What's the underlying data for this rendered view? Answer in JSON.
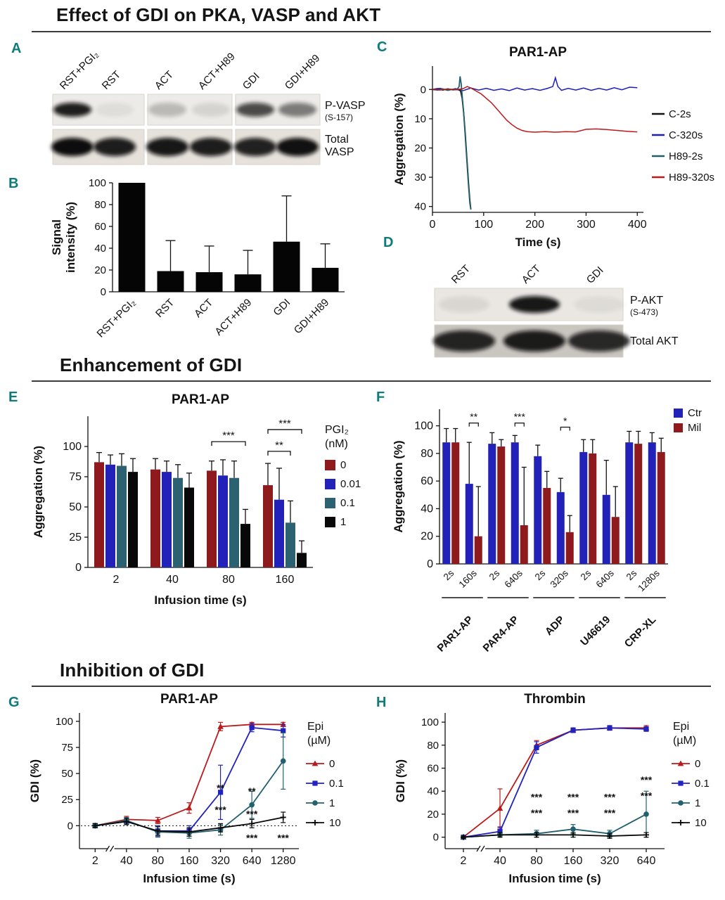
{
  "figure": {
    "sections": [
      {
        "title": "Effect of GDI on PKA, VASP and AKT"
      },
      {
        "title": "Enhancement of GDI"
      },
      {
        "title": "Inhibition of GDI"
      }
    ],
    "panel_letters": [
      "A",
      "B",
      "C",
      "D",
      "E",
      "F",
      "G",
      "H"
    ]
  },
  "blots": [
    {
      "id": "blot-a",
      "panel": "A",
      "lanes": [
        "RST+PGI₂",
        "RST",
        "ACT",
        "ACT+H89",
        "GDI",
        "GDI+H89"
      ],
      "rows": [
        {
          "label_lines": [
            "P-VASP"
          ],
          "sublabel": "(S-157)",
          "intensities": [
            0.92,
            0.06,
            0.22,
            0.1,
            0.72,
            0.5
          ]
        },
        {
          "label_lines": [
            "Total",
            "VASP"
          ],
          "sublabel": "",
          "intensities": [
            1,
            0.92,
            0.95,
            0.92,
            0.9,
            0.98
          ]
        }
      ]
    },
    {
      "id": "blot-d",
      "panel": "D",
      "lanes": [
        "RST",
        "ACT",
        "GDI"
      ],
      "rows": [
        {
          "label_lines": [
            "P-AKT"
          ],
          "sublabel": "(S-473)",
          "intensities": [
            0.07,
            0.95,
            0.05
          ]
        },
        {
          "label_lines": [
            "Total AKT"
          ],
          "sublabel": "",
          "intensities": [
            0.88,
            0.92,
            0.85
          ]
        }
      ]
    }
  ],
  "chart_data": [
    {
      "id": "chart-b",
      "panel": "B",
      "type": "bar",
      "ylabel_lines": [
        "Signal",
        "intensity (%)"
      ],
      "categories": [
        "RST+PGI₂",
        "RST",
        "ACT",
        "ACT+H89",
        "GDI",
        "GDI+H89"
      ],
      "values": [
        100,
        19,
        18,
        16,
        46,
        22
      ],
      "errors": [
        0,
        28,
        24,
        22,
        42,
        22
      ],
      "ylim": [
        0,
        100
      ],
      "yticks": [
        0,
        20,
        40,
        60,
        80,
        100
      ],
      "bar_color": "#050505"
    },
    {
      "id": "chart-c",
      "panel": "C",
      "type": "line",
      "title": "PAR1-AP",
      "xlabel": "Time (s)",
      "ylabel": "Aggregation (%)",
      "xlim": [
        0,
        412
      ],
      "xticks": [
        0,
        100,
        200,
        300,
        400
      ],
      "ylim": [
        -8,
        42
      ],
      "yticks": [
        0,
        10,
        20,
        30,
        40
      ],
      "y_inverted": true,
      "series": [
        {
          "name": "C-2s",
          "color": "#141414",
          "width": 1.8,
          "points": [
            [
              0,
              0
            ],
            [
              10,
              -0.3
            ],
            [
              20,
              0.2
            ],
            [
              30,
              -0.2
            ],
            [
              40,
              0.1
            ],
            [
              50,
              0
            ],
            [
              55,
              0.5
            ],
            [
              58,
              3
            ],
            [
              61,
              8
            ],
            [
              64,
              15
            ],
            [
              67,
              23
            ],
            [
              70,
              31
            ],
            [
              73,
              38
            ],
            [
              75,
              41
            ]
          ]
        },
        {
          "name": "C-320s",
          "color": "#1d1dbe",
          "width": 1.5,
          "points": [
            [
              0,
              0
            ],
            [
              15,
              -0.4
            ],
            [
              30,
              0.3
            ],
            [
              45,
              -0.3
            ],
            [
              60,
              0.4
            ],
            [
              75,
              -0.5
            ],
            [
              90,
              0.2
            ],
            [
              105,
              -0.4
            ],
            [
              120,
              0.3
            ],
            [
              135,
              -0.2
            ],
            [
              150,
              0.4
            ],
            [
              165,
              -0.5
            ],
            [
              180,
              0.2
            ],
            [
              195,
              -0.3
            ],
            [
              210,
              0.3
            ],
            [
              225,
              -0.4
            ],
            [
              235,
              -1
            ],
            [
              240,
              -4
            ],
            [
              245,
              -1
            ],
            [
              252,
              0.3
            ],
            [
              265,
              -0.4
            ],
            [
              280,
              0.2
            ],
            [
              295,
              -0.5
            ],
            [
              310,
              0.3
            ],
            [
              325,
              -0.4
            ],
            [
              340,
              0.2
            ],
            [
              355,
              -0.6
            ],
            [
              370,
              0.1
            ],
            [
              385,
              -0.8
            ],
            [
              400,
              -0.6
            ]
          ]
        },
        {
          "name": "H89-2s",
          "color": "#22606e",
          "width": 1.8,
          "points": [
            [
              0,
              0
            ],
            [
              10,
              0.2
            ],
            [
              20,
              -0.2
            ],
            [
              30,
              0.3
            ],
            [
              40,
              -0.1
            ],
            [
              48,
              0
            ],
            [
              52,
              -1
            ],
            [
              54,
              -4.5
            ],
            [
              56,
              -2
            ],
            [
              58,
              2
            ],
            [
              61,
              8
            ],
            [
              64,
              16
            ],
            [
              67,
              24
            ],
            [
              70,
              32
            ],
            [
              73,
              39
            ],
            [
              75,
              41
            ]
          ]
        },
        {
          "name": "H89-320s",
          "color": "#bc1a1a",
          "width": 1.5,
          "points": [
            [
              0,
              0
            ],
            [
              15,
              0.2
            ],
            [
              30,
              -0.2
            ],
            [
              45,
              0.1
            ],
            [
              60,
              -0.3
            ],
            [
              68,
              -1
            ],
            [
              75,
              -0.5
            ],
            [
              85,
              0.5
            ],
            [
              95,
              1.5
            ],
            [
              105,
              3
            ],
            [
              115,
              4.5
            ],
            [
              125,
              6.5
            ],
            [
              135,
              8.5
            ],
            [
              145,
              10.5
            ],
            [
              155,
              12
            ],
            [
              165,
              13.2
            ],
            [
              175,
              14
            ],
            [
              185,
              14.4
            ],
            [
              200,
              14.6
            ],
            [
              220,
              14.4
            ],
            [
              240,
              14.6
            ],
            [
              260,
              14.4
            ],
            [
              280,
              14.5
            ],
            [
              300,
              13.6
            ],
            [
              320,
              13.5
            ],
            [
              340,
              13.7
            ],
            [
              360,
              14
            ],
            [
              380,
              14.3
            ],
            [
              400,
              14.5
            ]
          ]
        }
      ]
    },
    {
      "id": "chart-e",
      "panel": "E",
      "type": "grouped_bar",
      "title": "PAR1-AP",
      "xlabel": "Infusion time (s)",
      "ylabel": "Aggregation (%)",
      "categories": [
        "2",
        "40",
        "80",
        "160"
      ],
      "ylim": [
        0,
        125
      ],
      "yticks": [
        0,
        25,
        50,
        75,
        100
      ],
      "legend_title_lines": [
        "PGI₂",
        "(nM)"
      ],
      "series": [
        {
          "name": "0",
          "color": "#8e1a1d",
          "values": [
            87,
            81,
            80,
            68
          ],
          "errors": [
            8,
            9,
            8,
            18
          ]
        },
        {
          "name": "0.01",
          "color": "#2222b8",
          "values": [
            85,
            79,
            76,
            56
          ],
          "errors": [
            8,
            9,
            13,
            26
          ]
        },
        {
          "name": "0.1",
          "color": "#2b6170",
          "values": [
            84,
            74,
            74,
            37
          ],
          "errors": [
            10,
            11,
            14,
            18
          ]
        },
        {
          "name": "1",
          "color": "#080808",
          "values": [
            79,
            66,
            36,
            12
          ],
          "errors": [
            11,
            12,
            12,
            10
          ]
        }
      ],
      "brackets": [
        {
          "cat": 2,
          "s1": 0,
          "s2": 3,
          "y": 104,
          "label": "***"
        },
        {
          "cat": 3,
          "s1": 0,
          "s2": 2,
          "y": 96,
          "label": "**"
        },
        {
          "cat": 3,
          "s1": 0,
          "s2": 3,
          "y": 114,
          "label": "***"
        }
      ]
    },
    {
      "id": "chart-f",
      "panel": "F",
      "type": "grouped_bar_pairs",
      "ylabel": "Aggregation (%)",
      "ylim": [
        0,
        112
      ],
      "yticks": [
        0,
        20,
        40,
        60,
        80,
        100
      ],
      "pair_labels": [
        "2s",
        "160s",
        "2s",
        "640s",
        "2s",
        "320s",
        "2s",
        "640s",
        "2s",
        "1280s"
      ],
      "groups": [
        {
          "name": "PAR1-AP",
          "pairs": [
            0,
            1
          ]
        },
        {
          "name": "PAR4-AP",
          "pairs": [
            2,
            3
          ]
        },
        {
          "name": "ADP",
          "pairs": [
            4,
            5
          ]
        },
        {
          "name": "U46619",
          "pairs": [
            6,
            7
          ]
        },
        {
          "name": "CRP-XL",
          "pairs": [
            8,
            9
          ]
        }
      ],
      "series": [
        {
          "name": "Ctr",
          "color": "#2222b8",
          "values": [
            88,
            58,
            87,
            88,
            78,
            52,
            81,
            50,
            88,
            88
          ],
          "errors": [
            10,
            30,
            8,
            5,
            8,
            10,
            9,
            25,
            8,
            7
          ]
        },
        {
          "name": "Mil",
          "color": "#8e1a1d",
          "values": [
            88,
            20,
            85,
            28,
            55,
            23,
            80,
            34,
            87,
            81
          ],
          "errors": [
            10,
            36,
            5,
            42,
            12,
            12,
            10,
            22,
            9,
            10
          ]
        }
      ],
      "brackets": [
        {
          "pair": 1,
          "y": 102,
          "label": "**"
        },
        {
          "pair": 3,
          "y": 102,
          "label": "***"
        },
        {
          "pair": 5,
          "y": 99,
          "label": "*"
        }
      ]
    },
    {
      "id": "chart-g",
      "panel": "G",
      "type": "line_cat",
      "title": "PAR1-AP",
      "xlabel": "Infusion time (s)",
      "ylabel": "GDI (%)",
      "categories": [
        "2",
        "40",
        "80",
        "160",
        "320",
        "640",
        "1280"
      ],
      "ylim": [
        -22,
        108
      ],
      "yticks": [
        0,
        25,
        50,
        75,
        100
      ],
      "zero_line": true,
      "axis_break": true,
      "legend_title_lines": [
        "Epi",
        "(µM)"
      ],
      "series": [
        {
          "name": "0",
          "color": "#bc1a1a",
          "marker": "triangle",
          "values": [
            0,
            6,
            5,
            17,
            95,
            97,
            97
          ],
          "errors": [
            2,
            3,
            3,
            5,
            4,
            2,
            2
          ]
        },
        {
          "name": "0.1",
          "color": "#2222c0",
          "marker": "square",
          "values": [
            0,
            4,
            -5,
            -5,
            32,
            94,
            91
          ],
          "errors": [
            2,
            3,
            5,
            5,
            26,
            4,
            6
          ]
        },
        {
          "name": "1",
          "color": "#22606e",
          "marker": "circle",
          "values": [
            0,
            5,
            -6,
            -7,
            -4,
            20,
            62
          ],
          "errors": [
            2,
            3,
            5,
            5,
            5,
            13,
            27
          ]
        },
        {
          "name": "10",
          "color": "#080808",
          "marker": "plus",
          "values": [
            0,
            4,
            -5,
            -6,
            -2,
            2,
            8
          ],
          "errors": [
            2,
            3,
            4,
            4,
            4,
            4,
            5
          ]
        }
      ],
      "annotations": [
        {
          "cat": 4,
          "y": 33,
          "text": "**"
        },
        {
          "cat": 4,
          "y": 12,
          "text": "***"
        },
        {
          "cat": 5,
          "y": 30,
          "text": "**"
        },
        {
          "cat": 5,
          "y": 8,
          "text": "***"
        },
        {
          "cat": 5,
          "y": -15,
          "text": "***"
        },
        {
          "cat": 6,
          "y": -15,
          "text": "***"
        }
      ]
    },
    {
      "id": "chart-h",
      "panel": "H",
      "type": "line_cat",
      "title": "Thrombin",
      "xlabel": "Infusion time (s)",
      "ylabel": "GDI (%)",
      "categories": [
        "2",
        "40",
        "80",
        "160",
        "320",
        "640"
      ],
      "ylim": [
        -10,
        108
      ],
      "yticks": [
        0,
        20,
        40,
        60,
        80,
        100
      ],
      "zero_line": false,
      "axis_break": true,
      "legend_title_lines": [
        "Epi",
        "(µM)"
      ],
      "series": [
        {
          "name": "0",
          "color": "#bc1a1a",
          "marker": "triangle",
          "values": [
            0,
            25,
            80,
            93,
            95,
            95
          ],
          "errors": [
            1,
            17,
            4,
            2,
            2,
            2
          ]
        },
        {
          "name": "0.1",
          "color": "#2222c0",
          "marker": "square",
          "values": [
            0,
            5,
            78,
            93,
            95,
            94
          ],
          "errors": [
            1,
            4,
            5,
            2,
            2,
            2
          ]
        },
        {
          "name": "1",
          "color": "#22606e",
          "marker": "circle",
          "values": [
            0,
            2,
            3,
            7,
            3,
            20
          ],
          "errors": [
            1,
            2,
            3,
            4,
            3,
            20
          ]
        },
        {
          "name": "10",
          "color": "#080808",
          "marker": "plus",
          "values": [
            0,
            2,
            2,
            2,
            1,
            2
          ],
          "errors": [
            1,
            2,
            2,
            2,
            2,
            2
          ]
        }
      ],
      "annotations": [
        {
          "cat": 2,
          "y": 32,
          "text": "***"
        },
        {
          "cat": 2,
          "y": 18,
          "text": "***"
        },
        {
          "cat": 3,
          "y": 32,
          "text": "***"
        },
        {
          "cat": 3,
          "y": 18,
          "text": "***"
        },
        {
          "cat": 4,
          "y": 32,
          "text": "***"
        },
        {
          "cat": 4,
          "y": 18,
          "text": "***"
        },
        {
          "cat": 5,
          "y": 47,
          "text": "***"
        },
        {
          "cat": 5,
          "y": 33,
          "text": "***"
        }
      ]
    }
  ]
}
